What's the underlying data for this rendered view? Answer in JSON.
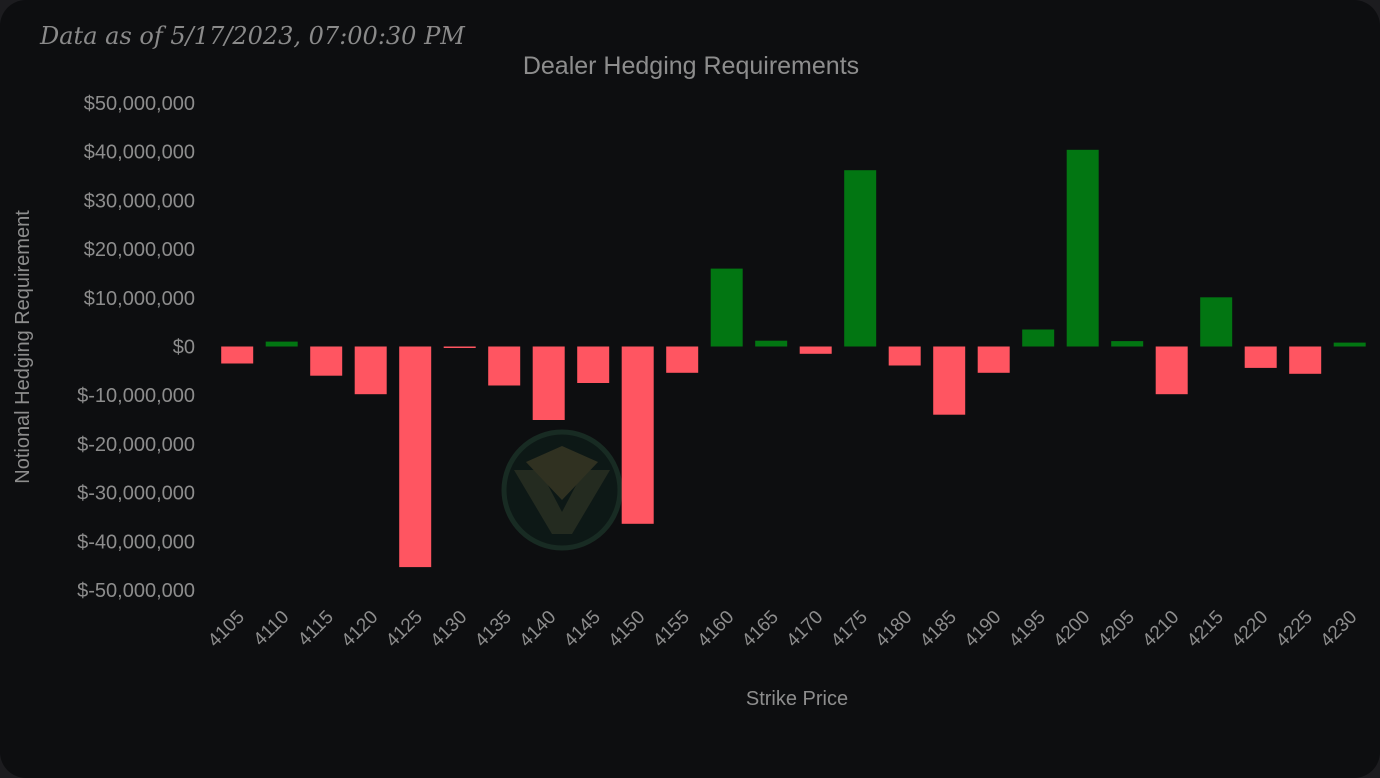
{
  "header": {
    "timestamp": "Data as of 5/17/2023, 07:00:30 PM"
  },
  "colors": {
    "background": "#0d0e10",
    "positive": "#027612",
    "negative": "#ff5561",
    "text": "#8d8d8d"
  },
  "watermark": {
    "icon": "v-logo-icon"
  },
  "chart_data": {
    "type": "bar",
    "title": "Dealer Hedging Requirements",
    "xlabel": "Strike Price",
    "ylabel": "Notional Hedging Requirement",
    "ylim": [
      -50000000,
      50000000
    ],
    "yticks": [
      50000000,
      40000000,
      30000000,
      20000000,
      10000000,
      0,
      -10000000,
      -20000000,
      -30000000,
      -40000000,
      -50000000
    ],
    "ytick_labels": [
      "$50,000,000",
      "$40,000,000",
      "$30,000,000",
      "$20,000,000",
      "$10,000,000",
      "$0",
      "$-10,000,000",
      "$-20,000,000",
      "$-30,000,000",
      "$-40,000,000",
      "$-50,000,000"
    ],
    "categories": [
      "4105",
      "4110",
      "4115",
      "4120",
      "4125",
      "4130",
      "4135",
      "4140",
      "4145",
      "4150",
      "4155",
      "4160",
      "4165",
      "4170",
      "4175",
      "4180",
      "4185",
      "4190",
      "4195",
      "4200",
      "4205",
      "4210",
      "4215",
      "4220",
      "4225",
      "4230"
    ],
    "values": [
      -3500000,
      1000000,
      -6000000,
      -9800000,
      -45300000,
      -300000,
      -8000000,
      -15100000,
      -7500000,
      -36400000,
      -5400000,
      16000000,
      1200000,
      -1500000,
      36200000,
      -3900000,
      -14000000,
      -5400000,
      3500000,
      40400000,
      1100000,
      -9800000,
      10100000,
      -4400000,
      -5600000,
      800000
    ],
    "grid": false,
    "legend": "none"
  }
}
